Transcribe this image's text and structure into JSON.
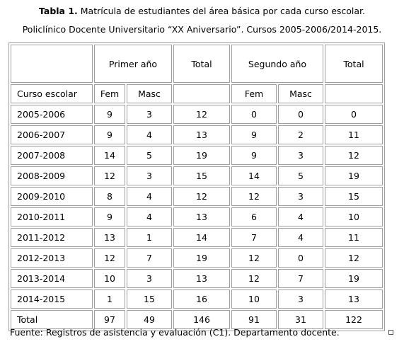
{
  "caption": {
    "label": "Tabla 1.",
    "title": " Matrícula de estudiantes del área básica por cada curso escolar.",
    "subtitle": "Policlínico Docente Universitario “XX Aniversario”. Cursos 2005-2006/2014-2015."
  },
  "table": {
    "group_headers": {
      "primer": "Primer año",
      "total1": "Total",
      "segundo": "Segundo año",
      "total2": "Total"
    },
    "sub_headers": {
      "curso": "Curso escolar",
      "fem1": "Fem",
      "masc1": "Masc",
      "fem2": "Fem",
      "masc2": "Masc"
    },
    "rows": [
      [
        "2005-2006",
        "9",
        "3",
        "12",
        "0",
        "0",
        "0"
      ],
      [
        "2006-2007",
        "9",
        "4",
        "13",
        "9",
        "2",
        "11"
      ],
      [
        "2007-2008",
        "14",
        "5",
        "19",
        "9",
        "3",
        "12"
      ],
      [
        "2008-2009",
        "12",
        "3",
        "15",
        "14",
        "5",
        "19"
      ],
      [
        "2009-2010",
        "8",
        "4",
        "12",
        "12",
        "3",
        "15"
      ],
      [
        "2010-2011",
        "9",
        "4",
        "13",
        "6",
        "4",
        "10"
      ],
      [
        "2011-2012",
        "13",
        "1",
        "14",
        "7",
        "4",
        "11"
      ],
      [
        "2012-2013",
        "12",
        "7",
        "19",
        "12",
        "0",
        "12"
      ],
      [
        "2013-2014",
        "10",
        "3",
        "13",
        "12",
        "7",
        "19"
      ],
      [
        "2014-2015",
        "1",
        "15",
        "16",
        "10",
        "3",
        "13"
      ]
    ],
    "total_row": [
      "Total",
      "97",
      "49",
      "146",
      "91",
      "31",
      "122"
    ]
  },
  "footnote": "Fuente: Registros de asistencia y evaluación (C1). Departamento docente."
}
